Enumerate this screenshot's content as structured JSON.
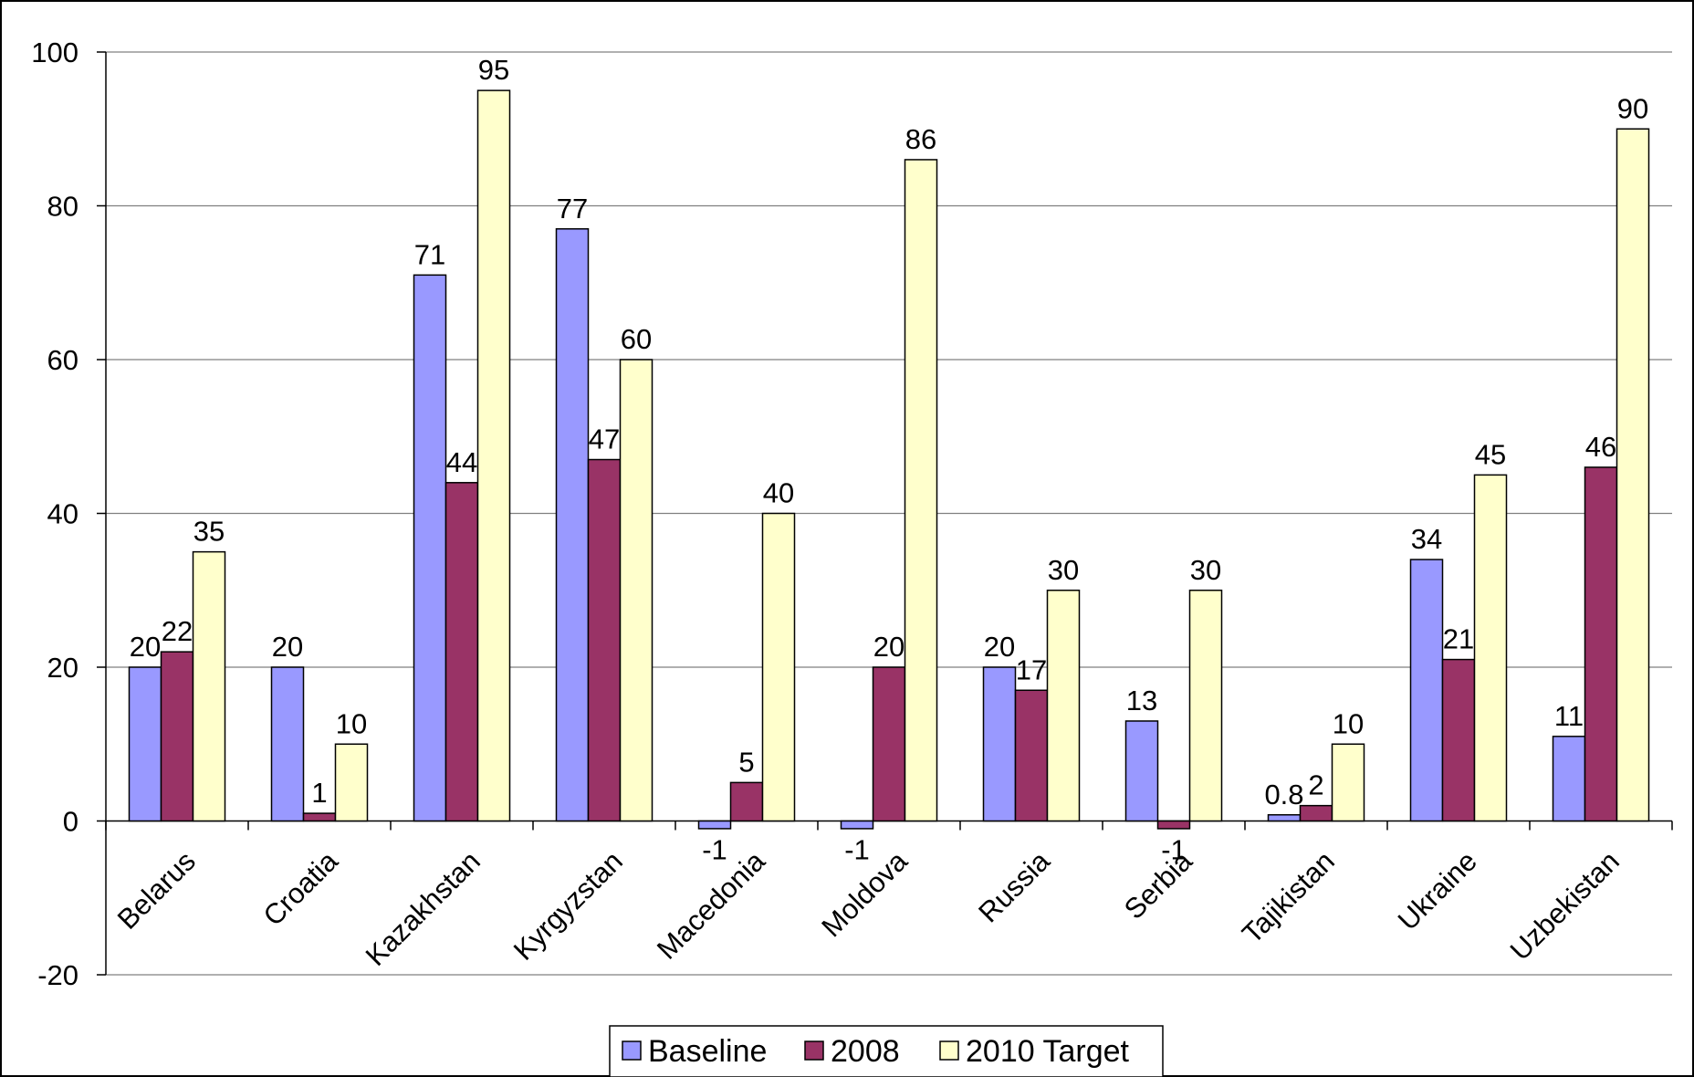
{
  "chart_data": {
    "type": "bar",
    "categories": [
      "Belarus",
      "Croatia",
      "Kazakhstan",
      "Kyrgyzstan",
      "Macedonia",
      "Moldova",
      "Russia",
      "Serbia",
      "Tajikistan",
      "Ukraine",
      "Uzbekistan"
    ],
    "series": [
      {
        "name": "Baseline",
        "color": "#9999ff",
        "values": [
          20,
          20,
          71,
          77,
          -1,
          -1,
          20,
          13,
          0.8,
          34,
          11
        ]
      },
      {
        "name": "2008",
        "color": "#993366",
        "values": [
          22,
          1,
          44,
          47,
          5,
          20,
          17,
          -1,
          2,
          21,
          46
        ]
      },
      {
        "name": "2010 Target",
        "color": "#ffffcc",
        "values": [
          35,
          10,
          95,
          60,
          40,
          86,
          30,
          30,
          10,
          45,
          90
        ]
      }
    ],
    "ylim": [
      -20,
      100
    ],
    "yticks": [
      -20,
      0,
      20,
      40,
      60,
      80,
      100
    ],
    "grid": true,
    "legend": "bottom",
    "title": "",
    "xlabel": "",
    "ylabel": ""
  }
}
